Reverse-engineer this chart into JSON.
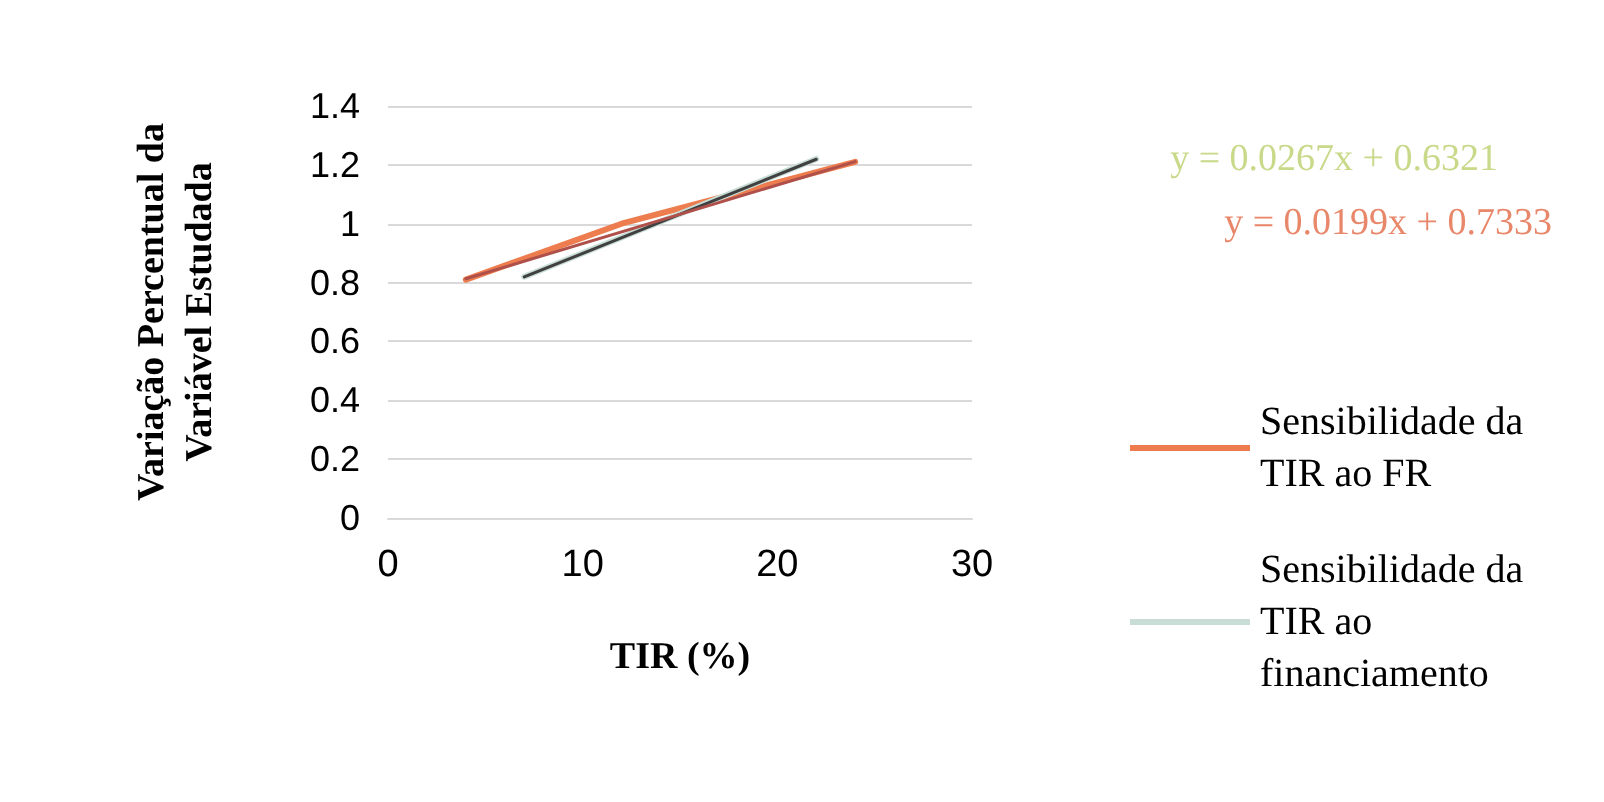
{
  "chart_data": {
    "type": "line",
    "xlabel": "TIR (%)",
    "ylabel": "Variação Percentual da\nVariável Estudada",
    "xlim": [
      0,
      30
    ],
    "xticks": [
      0,
      10,
      20,
      30
    ],
    "ylim": [
      0,
      1.4
    ],
    "yticks": [
      0,
      0.2,
      0.4,
      0.6,
      0.8,
      1,
      1.2,
      1.4
    ],
    "grid": "y",
    "legend": "right",
    "marker": "none",
    "line_style": "solid",
    "series": [
      {
        "name": "Sensibilidade da TIR ao FR",
        "color": "#ed7d4f",
        "x": [
          4,
          12,
          24
        ],
        "values": [
          0.81,
          1.0,
          1.21
        ]
      },
      {
        "name": "Sensibilidade da TIR ao financiamento",
        "color": "#c8ddd6",
        "x": [
          7,
          14.5,
          22
        ],
        "values": [
          0.82,
          1.02,
          1.22
        ]
      },
      {
        "color": "#404040",
        "x": [
          7,
          22
        ],
        "values": [
          0.819,
          1.219
        ]
      },
      {
        "color": "#b0504a",
        "x": [
          4,
          24
        ],
        "values": [
          0.813,
          1.211
        ]
      }
    ],
    "annotations": [
      "y = 0.0267x + 0.6321",
      "y = 0.0199x + 0.7333"
    ]
  }
}
